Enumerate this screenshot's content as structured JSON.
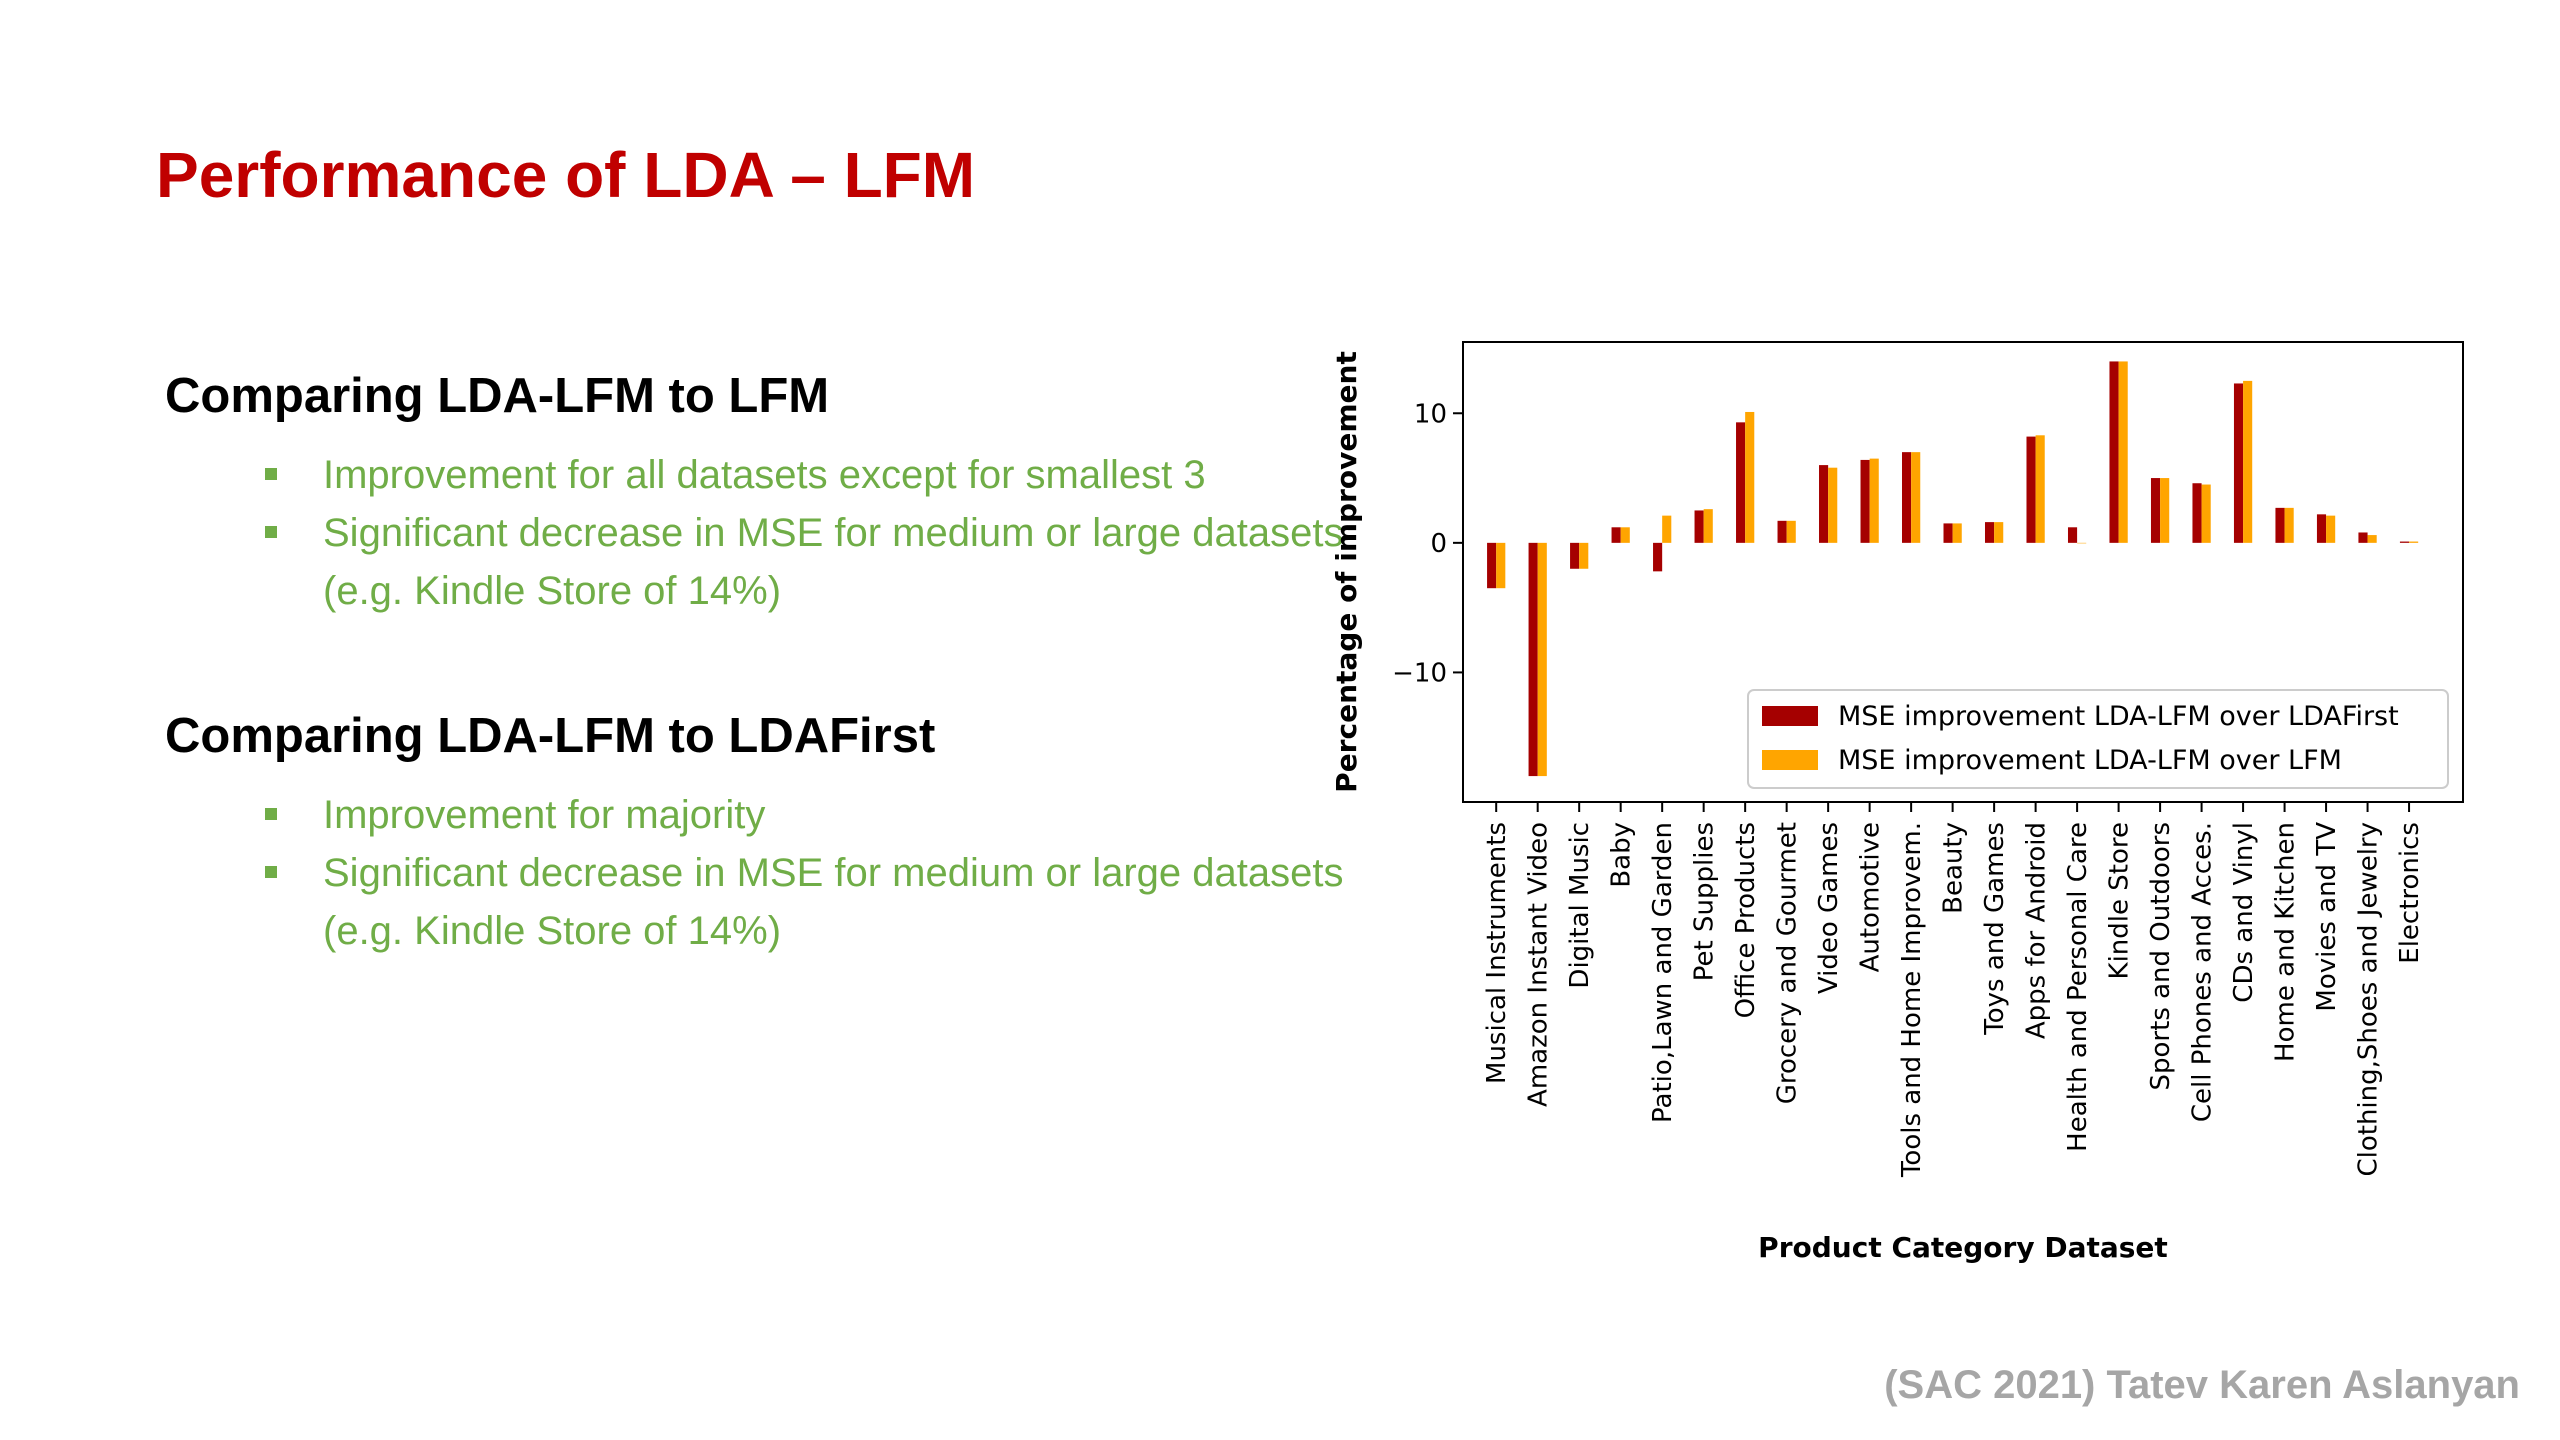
{
  "slide": {
    "title": "Performance of LDA – LFM",
    "footer": "(SAC 2021) Tatev Karen Aslanyan"
  },
  "sections": [
    {
      "heading": "Comparing LDA-LFM to LFM",
      "bullets": [
        "Improvement for all datasets except for smallest 3",
        "Significant decrease in MSE for medium or large datasets (e.g. Kindle Store of 14%)"
      ]
    },
    {
      "heading": "Comparing LDA-LFM to LDAFirst",
      "bullets": [
        "Improvement for majority",
        "Significant decrease in MSE for medium or large datasets (e.g. Kindle Store of 14%)"
      ]
    }
  ],
  "chart_data": {
    "type": "bar",
    "xlabel": "Product Category Dataset",
    "ylabel": "Percentage of improvement",
    "ylim": [
      -20,
      15.5
    ],
    "yticks": [
      -10,
      0,
      10
    ],
    "ytick_labels": [
      "−10",
      "0",
      "10"
    ],
    "legend_position": "lower-right",
    "categories": [
      "Musical Instruments",
      "Amazon Instant Video",
      "Digital Music",
      "Baby",
      "Patio,Lawn and Garden",
      "Pet Supplies",
      "Office Products",
      "Grocery and Gourmet",
      "Video Games",
      "Automotive",
      "Tools and Home Improvem.",
      "Beauty",
      "Toys and Games",
      "Apps for Android",
      "Health and Personal Care",
      "Kindle Store",
      "Sports and Outdoors",
      "Cell Phones and Acces.",
      "CDs and Vinyl",
      "Home and Kitchen",
      "Movies and TV",
      "Clothing,Shoes and Jewelry",
      "Electronics"
    ],
    "series": [
      {
        "name": "MSE improvement LDA-LFM over LDAFirst",
        "color": "#a50000",
        "values": [
          -3.5,
          -18,
          -2,
          1.2,
          -2.2,
          2.5,
          9.3,
          1.7,
          6,
          6.4,
          7,
          1.5,
          1.6,
          8.2,
          1.2,
          14,
          5,
          4.6,
          12.3,
          2.7,
          2.2,
          0.8,
          0.1
        ]
      },
      {
        "name": "MSE improvement LDA-LFM over LFM",
        "color": "#ffa500",
        "values": [
          -3.5,
          -18,
          -2,
          1.2,
          2.1,
          2.6,
          10.1,
          1.7,
          5.8,
          6.5,
          7,
          1.5,
          1.6,
          8.3,
          0,
          14,
          5,
          4.5,
          12.5,
          2.7,
          2.1,
          0.6,
          0.1
        ]
      }
    ]
  }
}
